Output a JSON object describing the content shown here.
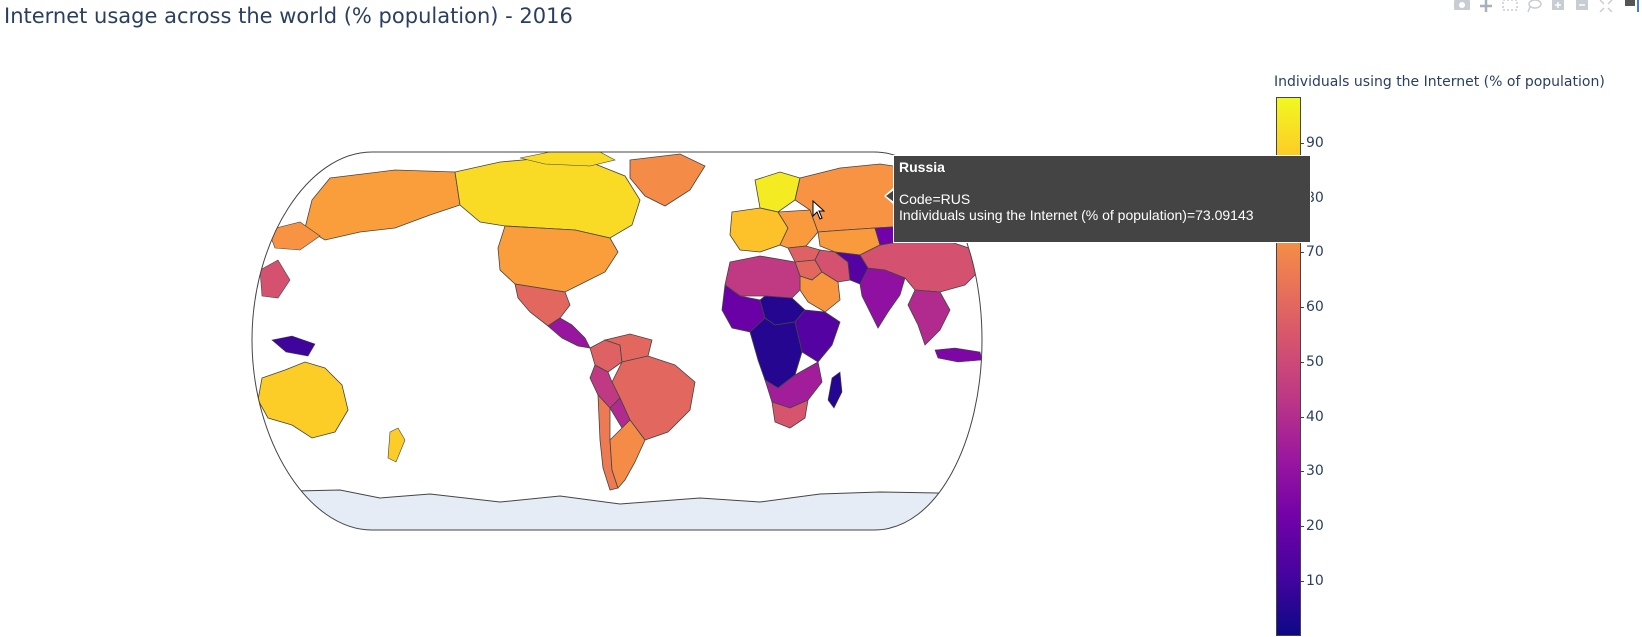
{
  "title": "Internet usage across the world (% population) - 2016",
  "modebar": {
    "buttons": [
      {
        "name": "camera-icon",
        "label": "Download plot as a png"
      },
      {
        "name": "pan-icon",
        "label": "Pan"
      },
      {
        "name": "box-select-icon",
        "label": "Box Select"
      },
      {
        "name": "lasso-select-icon",
        "label": "Lasso Select"
      },
      {
        "name": "zoom-in-icon",
        "label": "Zoom in"
      },
      {
        "name": "zoom-out-icon",
        "label": "Zoom out"
      },
      {
        "name": "reset-view-icon",
        "label": "Reset view"
      },
      {
        "name": "plotly-logo-icon",
        "label": "Produced with Plotly"
      }
    ]
  },
  "colorbar": {
    "title": "Individuals using the Internet (% of population)",
    "ticks": [
      "90",
      "80",
      "70",
      "60",
      "50",
      "40",
      "30",
      "20",
      "10"
    ],
    "tick_values": [
      90,
      80,
      70,
      60,
      50,
      40,
      30,
      20,
      10
    ],
    "range": [
      0.5,
      98.2
    ],
    "colorscale": [
      "#0d0887",
      "#46039f",
      "#7201a8",
      "#9c179e",
      "#bd3786",
      "#d8576b",
      "#ed7953",
      "#fb9f3a",
      "#fdca26",
      "#f0f921"
    ]
  },
  "tooltip": {
    "name": "Russia",
    "code_line": "Code=RUS",
    "value_line": "Individuals using the Internet (% of population)=73.09143"
  },
  "chart_data": {
    "type": "choropleth",
    "projection": "natural earth",
    "year": 2016,
    "locations": {
      "canada": {
        "value": 91
      },
      "usa": {
        "value": 76
      },
      "greenland": {
        "value": 71
      },
      "alaska": {
        "value": 76
      },
      "mexico": {
        "value": 60
      },
      "central_america": {
        "value": 32
      },
      "colombia": {
        "value": 58
      },
      "venezuela": {
        "value": 60
      },
      "brazil": {
        "value": 60
      },
      "peru": {
        "value": 45
      },
      "bolivia": {
        "value": 40
      },
      "argentina": {
        "value": 71
      },
      "chile": {
        "value": 66
      },
      "scandinavia": {
        "value": 95
      },
      "western_europe": {
        "value": 85
      },
      "eastern_europe": {
        "value": 75
      },
      "russia": {
        "value": 73.09143
      },
      "kazakhstan": {
        "value": 75
      },
      "turkey": {
        "value": 58
      },
      "middle_east": {
        "value": 60
      },
      "saudi_arabia": {
        "value": 74
      },
      "iran": {
        "value": 53
      },
      "pakistan": {
        "value": 15
      },
      "india": {
        "value": 30
      },
      "china": {
        "value": 53
      },
      "mongolia": {
        "value": 22
      },
      "southeast_asia": {
        "value": 40
      },
      "japan": {
        "value": 93
      },
      "indonesia": {
        "value": 25
      },
      "papua_new_guinea": {
        "value": 10
      },
      "australia": {
        "value": 88
      },
      "new_zealand": {
        "value": 88
      },
      "north_africa": {
        "value": 45
      },
      "west_africa": {
        "value": 20
      },
      "sahel": {
        "value": 5
      },
      "central_africa": {
        "value": 5
      },
      "east_africa": {
        "value": 15
      },
      "southern_africa": {
        "value": 35
      },
      "south_africa": {
        "value": 54
      },
      "madagascar": {
        "value": 5
      }
    }
  }
}
